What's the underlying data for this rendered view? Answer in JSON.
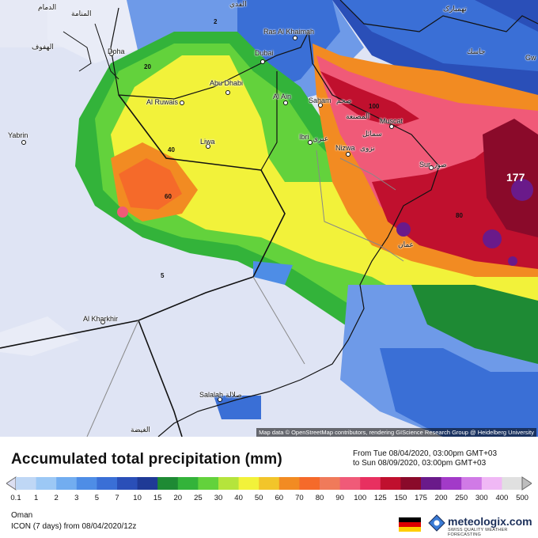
{
  "map": {
    "region_labels": [
      {
        "name": "Doha"
      },
      {
        "name": "Abu Dhabi"
      },
      {
        "name": "Dubai"
      },
      {
        "name": "Ras Al Khaimah"
      },
      {
        "name": "Al Ain"
      },
      {
        "name": "Al Ruwais"
      },
      {
        "name": "Liwa"
      },
      {
        "name": "Ibri"
      },
      {
        "name": "Nizwa"
      },
      {
        "name": "Saham"
      },
      {
        "name": "Muscat"
      },
      {
        "name": "Sur"
      },
      {
        "name": "Al Kharkhir"
      },
      {
        "name": "Salalah"
      },
      {
        "name": "Yabrin"
      },
      {
        "name": "الدمام"
      },
      {
        "name": "المنامة"
      },
      {
        "name": "الهفوف"
      },
      {
        "name": "صحم"
      },
      {
        "name": "المصنعة"
      },
      {
        "name": "سمائل"
      },
      {
        "name": "نزوى"
      },
      {
        "name": "عبري"
      },
      {
        "name": "صور"
      },
      {
        "name": "عمان"
      },
      {
        "name": "جاسك"
      },
      {
        "name": "صلالة"
      },
      {
        "name": "الغيضة"
      },
      {
        "name": "Gw"
      },
      {
        "name": "تهمبارک"
      },
      {
        "name": "الفدي"
      }
    ],
    "contour_labels": [
      "20",
      "40",
      "60",
      "80",
      "100",
      "5",
      "2",
      "177"
    ],
    "max_value": "177",
    "credit": "Map data © OpenStreetMap contributors, rendering GIScience Research Group @ Heidelberg University"
  },
  "footer": {
    "title": "Accumulated total precipitation (mm)",
    "period_from": "From Tue 08/04/2020, 03:00pm GMT+03",
    "period_to": "to Sun 08/09/2020, 03:00pm GMT+03",
    "region": "Oman",
    "model": "ICON (7 days) from 08/04/2020/12z",
    "brand": "meteologix.com",
    "tagline": "SWISS QUALITY WEATHER FORECASTING"
  },
  "colorbar": {
    "ticks": [
      "0.1",
      "1",
      "2",
      "3",
      "5",
      "7",
      "10",
      "15",
      "20",
      "25",
      "30",
      "40",
      "50",
      "60",
      "70",
      "80",
      "90",
      "100",
      "125",
      "150",
      "175",
      "200",
      "250",
      "300",
      "400",
      "500"
    ],
    "colors": [
      "#dcdff2",
      "#bfd7f5",
      "#9cc8f5",
      "#72adf0",
      "#4e8de6",
      "#3a6fd6",
      "#2a4fb8",
      "#1f3a96",
      "#1e8a34",
      "#33b33a",
      "#63d23c",
      "#b5e43c",
      "#f2f23a",
      "#f2c52a",
      "#f28b22",
      "#f56a2a",
      "#f07a5a",
      "#f05a78",
      "#e83060",
      "#c0102e",
      "#8a0a2a",
      "#6a1a8a",
      "#a23ac8",
      "#d07ae6",
      "#f0b8f5",
      "#e0e0e0",
      "#bdbdbd"
    ]
  },
  "flag_colors": [
    "#000000",
    "#dd0000",
    "#ffce00"
  ],
  "logo_color": "#3a7bd5"
}
